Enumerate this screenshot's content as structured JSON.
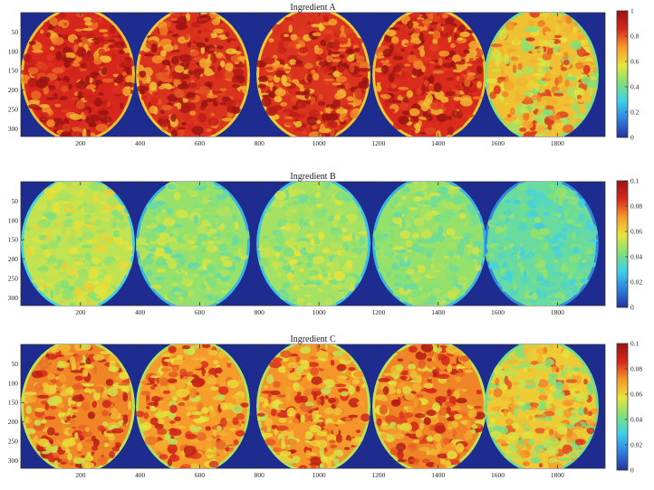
{
  "colors": {
    "background": "#1f2c8f",
    "colormap": [
      "#24329a",
      "#2f7fe0",
      "#3fd0e8",
      "#7fe07a",
      "#e8e43a",
      "#f59a2a",
      "#d8261c",
      "#9a1410"
    ]
  },
  "chart_data": [
    {
      "type": "heatmap",
      "title": "Ingredient A",
      "xticks": [
        "200",
        "400",
        "600",
        "800",
        "1000",
        "1200",
        "1400",
        "1600",
        "1800"
      ],
      "yticks": [
        "50",
        "100",
        "150",
        "200",
        "250",
        "300"
      ],
      "colorbar_ticks": [
        "1",
        "0.8",
        "0.6",
        "0.4",
        "0.2",
        "0"
      ],
      "clim": [
        0,
        1
      ],
      "disk_mean_levels": [
        0.86,
        0.84,
        0.84,
        0.85,
        0.64
      ],
      "xlim": [
        0,
        1960
      ],
      "ylim": [
        0,
        320
      ]
    },
    {
      "type": "heatmap",
      "title": "Ingredient B",
      "xticks": [
        "200",
        "400",
        "600",
        "800",
        "1000",
        "1200",
        "1400",
        "1600",
        "1800"
      ],
      "yticks": [
        "50",
        "100",
        "150",
        "200",
        "250",
        "300"
      ],
      "colorbar_ticks": [
        "0.1",
        "0.08",
        "0.06",
        "0.04",
        "0.02",
        "0"
      ],
      "clim": [
        0,
        0.1
      ],
      "disk_mean_levels": [
        0.52,
        0.46,
        0.48,
        0.46,
        0.38
      ],
      "xlim": [
        0,
        1960
      ],
      "ylim": [
        0,
        320
      ]
    },
    {
      "type": "heatmap",
      "title": "Ingredient C",
      "xticks": [
        "200",
        "400",
        "600",
        "800",
        "1000",
        "1200",
        "1400",
        "1600",
        "1800"
      ],
      "yticks": [
        "50",
        "100",
        "150",
        "200",
        "250",
        "300"
      ],
      "colorbar_ticks": [
        "0.1",
        "0.08",
        "0.06",
        "0.04",
        "0.02",
        "0"
      ],
      "clim": [
        0,
        0.1
      ],
      "disk_mean_levels": [
        0.74,
        0.71,
        0.72,
        0.74,
        0.62
      ],
      "xlim": [
        0,
        1960
      ],
      "ylim": [
        0,
        320
      ]
    }
  ]
}
